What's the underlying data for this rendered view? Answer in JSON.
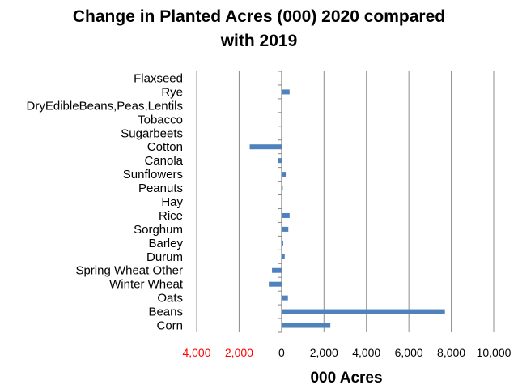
{
  "chart_data": {
    "type": "bar",
    "orientation": "horizontal",
    "title": [
      "Change in Planted Acres (000) 2020 compared",
      "with 2019"
    ],
    "xlabel": "000 Acres",
    "ylabel": "",
    "categories": [
      "Corn",
      "Beans",
      "Oats",
      "Winter Wheat",
      "Spring Wheat Other",
      "Durum",
      "Barley",
      "Sorghum",
      "Rice",
      "Hay",
      "Peanuts",
      "Sunflowers",
      "Canola",
      "Cotton",
      "Sugarbeets",
      "Tobacco",
      "DryEdibleBeans,Peas,Lentils",
      "Rye",
      "Flaxseed"
    ],
    "values": [
      2300,
      7700,
      300,
      -600,
      -450,
      150,
      80,
      320,
      380,
      0,
      60,
      200,
      -150,
      -1500,
      0,
      0,
      0,
      380,
      0
    ],
    "xlim": [
      -4000,
      10000
    ],
    "xticks": [
      -4000,
      -2000,
      0,
      2000,
      4000,
      6000,
      8000,
      10000
    ],
    "xtick_labels": [
      "4,000",
      "2,000",
      "0",
      "2,000",
      "4,000",
      "6,000",
      "8,000",
      "10,000"
    ],
    "bar_color": "#4f81bd",
    "negative_tick_color": "#ff0000",
    "grid": true
  }
}
